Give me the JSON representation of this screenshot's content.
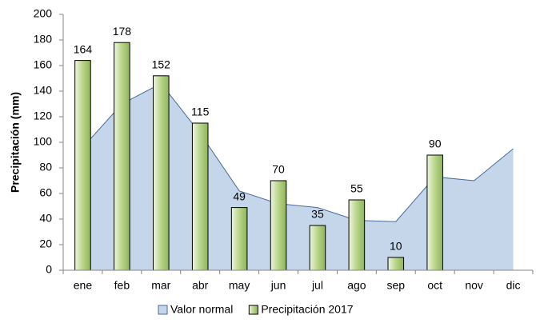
{
  "chart_data": {
    "type": "combo",
    "y_label": "Precipitación (mm)",
    "categories": [
      "ene",
      "feb",
      "mar",
      "abr",
      "may",
      "jun",
      "jul",
      "ago",
      "sep",
      "oct",
      "nov",
      "dic"
    ],
    "series": [
      {
        "name": "Valor normal",
        "type": "area",
        "color": "#c6d6ea",
        "values": [
          96,
          130,
          146,
          107,
          62,
          52,
          49,
          39,
          38,
          73,
          70,
          95
        ]
      },
      {
        "name": "Precipitación 2017",
        "type": "bar",
        "color": "#b9d58a",
        "values": [
          164,
          178,
          152,
          115,
          49,
          70,
          35,
          55,
          10,
          90,
          null,
          null
        ]
      }
    ],
    "ylim": [
      0,
      200
    ],
    "yticks": [
      0,
      20,
      40,
      60,
      80,
      100,
      120,
      140,
      160,
      180,
      200
    ],
    "grid": false,
    "legend": "bottom"
  }
}
